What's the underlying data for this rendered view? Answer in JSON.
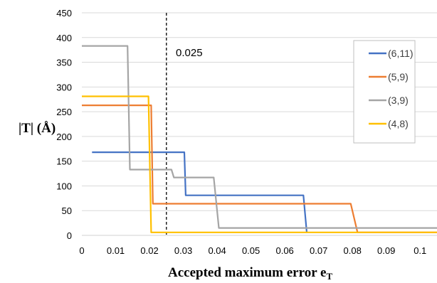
{
  "chart_data": {
    "type": "line",
    "step": true,
    "xlabel_main": "Accepted maximum error e",
    "xlabel_sub": "T",
    "ylabel": "|T| (Å)",
    "xlim": [
      0,
      0.105
    ],
    "ylim": [
      0,
      450
    ],
    "xticks": [
      "0",
      "0.01",
      "0.02",
      "0.03",
      "0.04",
      "0.05",
      "0.06",
      "0.07",
      "0.08",
      "0.09",
      "0.1"
    ],
    "yticks": [
      "0",
      "50",
      "100",
      "150",
      "200",
      "250",
      "300",
      "350",
      "400",
      "450"
    ],
    "grid": "horizontal",
    "legend_position": "right",
    "annotation": {
      "label": "0.025",
      "x": 0.025,
      "style": "dashed vertical line"
    },
    "series": [
      {
        "name": "(6,11)",
        "color": "#4472C4",
        "points": [
          [
            0.003,
            168
          ],
          [
            0.0303,
            168
          ],
          [
            0.0307,
            81
          ],
          [
            0.0655,
            81
          ],
          [
            0.0665,
            6
          ]
        ]
      },
      {
        "name": "(5,9)",
        "color": "#ED7D31",
        "points": [
          [
            0,
            263
          ],
          [
            0.0205,
            263
          ],
          [
            0.021,
            64
          ],
          [
            0.0795,
            64
          ],
          [
            0.0815,
            6
          ],
          [
            0.105,
            6
          ]
        ]
      },
      {
        "name": "(3,9)",
        "color": "#A5A5A5",
        "points": [
          [
            0,
            383
          ],
          [
            0.0135,
            383
          ],
          [
            0.0142,
            133
          ],
          [
            0.0265,
            133
          ],
          [
            0.0272,
            117
          ],
          [
            0.039,
            117
          ],
          [
            0.0405,
            15
          ],
          [
            0.105,
            15
          ]
        ]
      },
      {
        "name": "(4,8)",
        "color": "#FFC000",
        "points": [
          [
            0,
            281
          ],
          [
            0.0197,
            281
          ],
          [
            0.0205,
            6
          ],
          [
            0.105,
            6
          ]
        ]
      }
    ]
  }
}
